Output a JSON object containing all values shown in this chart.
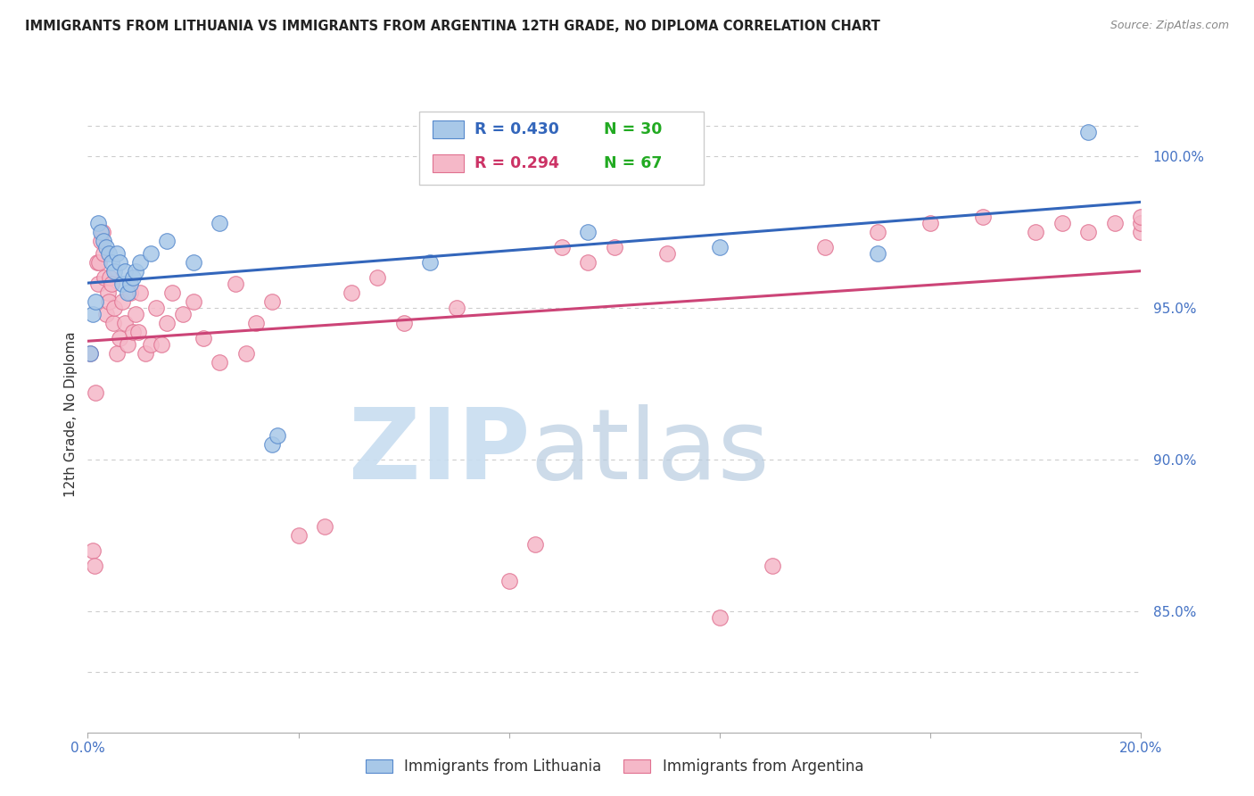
{
  "title": "IMMIGRANTS FROM LITHUANIA VS IMMIGRANTS FROM ARGENTINA 12TH GRADE, NO DIPLOMA CORRELATION CHART",
  "source": "Source: ZipAtlas.com",
  "ylabel": "12th Grade, No Diploma",
  "xlim": [
    0.0,
    20.0
  ],
  "ylim": [
    81.0,
    102.0
  ],
  "series1_label": "Immigrants from Lithuania",
  "series1_R": "R = 0.430",
  "series1_N": "N = 30",
  "series1_color": "#a8c8e8",
  "series1_edge_color": "#5588cc",
  "series1_line_color": "#3366bb",
  "series2_label": "Immigrants from Argentina",
  "series2_R": "R = 0.294",
  "series2_N": "N = 67",
  "series2_color": "#f5b8c8",
  "series2_edge_color": "#e07090",
  "series2_line_color": "#cc4477",
  "watermark_zip": "ZIP",
  "watermark_atlas": "atlas",
  "background_color": "#ffffff",
  "legend_R_color": "#3366bb",
  "legend_N_color": "#33aa33",
  "lithuania_x": [
    0.05,
    0.1,
    0.15,
    0.2,
    0.25,
    0.3,
    0.35,
    0.4,
    0.45,
    0.5,
    0.55,
    0.6,
    0.65,
    0.7,
    0.75,
    0.8,
    0.85,
    0.9,
    1.0,
    1.2,
    1.5,
    2.0,
    2.5,
    3.5,
    3.6,
    6.5,
    9.5,
    12.0,
    15.0,
    19.0
  ],
  "lithuania_y": [
    93.5,
    94.8,
    95.2,
    97.8,
    97.5,
    97.2,
    97.0,
    96.8,
    96.5,
    96.2,
    96.8,
    96.5,
    95.8,
    96.2,
    95.5,
    95.8,
    96.0,
    96.2,
    96.5,
    96.8,
    97.2,
    96.5,
    97.8,
    90.5,
    90.8,
    96.5,
    97.5,
    97.0,
    96.8,
    100.8
  ],
  "argentina_x": [
    0.05,
    0.1,
    0.12,
    0.15,
    0.18,
    0.2,
    0.22,
    0.25,
    0.28,
    0.3,
    0.32,
    0.35,
    0.38,
    0.4,
    0.42,
    0.45,
    0.48,
    0.5,
    0.55,
    0.6,
    0.65,
    0.7,
    0.75,
    0.8,
    0.85,
    0.9,
    0.95,
    1.0,
    1.1,
    1.2,
    1.3,
    1.4,
    1.5,
    1.6,
    1.8,
    2.0,
    2.2,
    2.5,
    2.8,
    3.0,
    3.2,
    3.5,
    4.0,
    4.5,
    5.0,
    5.5,
    6.0,
    7.0,
    8.0,
    8.5,
    9.0,
    9.5,
    10.0,
    11.0,
    12.0,
    13.0,
    14.0,
    15.0,
    16.0,
    17.0,
    18.0,
    18.5,
    19.0,
    19.5,
    20.0,
    20.0,
    20.0
  ],
  "argentina_y": [
    93.5,
    87.0,
    86.5,
    92.2,
    96.5,
    95.8,
    96.5,
    97.2,
    97.5,
    96.8,
    96.0,
    94.8,
    95.5,
    95.2,
    96.0,
    95.8,
    94.5,
    95.0,
    93.5,
    94.0,
    95.2,
    94.5,
    93.8,
    95.5,
    94.2,
    94.8,
    94.2,
    95.5,
    93.5,
    93.8,
    95.0,
    93.8,
    94.5,
    95.5,
    94.8,
    95.2,
    94.0,
    93.2,
    95.8,
    93.5,
    94.5,
    95.2,
    87.5,
    87.8,
    95.5,
    96.0,
    94.5,
    95.0,
    86.0,
    87.2,
    97.0,
    96.5,
    97.0,
    96.8,
    84.8,
    86.5,
    97.0,
    97.5,
    97.8,
    98.0,
    97.5,
    97.8,
    97.5,
    97.8,
    97.5,
    97.8,
    98.0
  ]
}
